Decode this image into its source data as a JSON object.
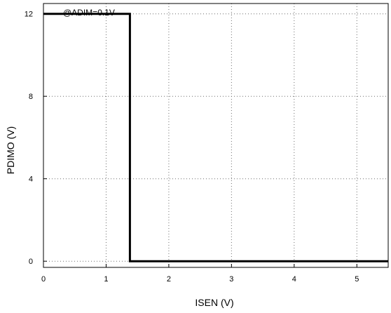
{
  "chart_data": {
    "type": "line",
    "title": "",
    "xlabel": "ISEN (V)",
    "ylabel": "PDIMO (V)",
    "xlim": [
      0,
      5.5
    ],
    "ylim": [
      -0.3,
      12.5
    ],
    "xticks": [
      0,
      1,
      2,
      3,
      4,
      5
    ],
    "yticks": [
      0,
      4,
      8,
      12
    ],
    "xtick_labels": [
      "0",
      "1",
      "2",
      "3",
      "4",
      "5"
    ],
    "ytick_labels": [
      "0",
      "4",
      "8",
      "12"
    ],
    "grid": true,
    "annotations": [
      "@ADIM=0.1V"
    ],
    "series": [
      {
        "x": [
          0,
          1.38,
          1.38,
          5.5
        ],
        "y": [
          12,
          12,
          0,
          0
        ],
        "color": "#000000"
      }
    ]
  }
}
